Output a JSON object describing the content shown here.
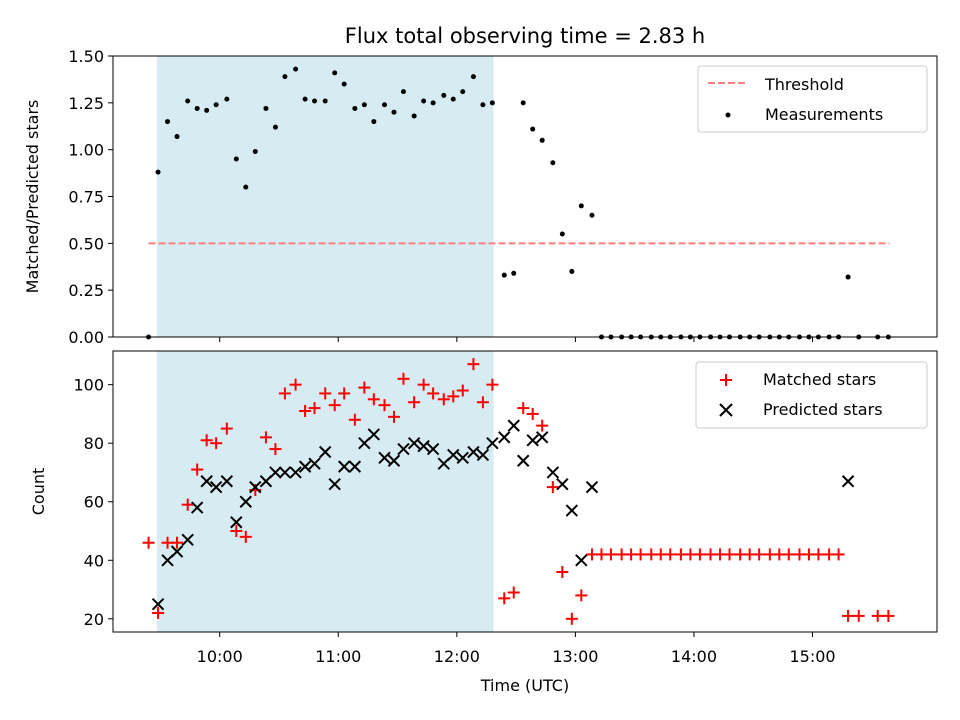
{
  "chart_data": [
    {
      "type": "scatter",
      "title": "Flux total observing time = 2.83 h",
      "xlabel": "",
      "ylabel": "Matched/Predicted stars",
      "xlim": [
        9.1,
        16.05
      ],
      "ylim": [
        0.0,
        1.5
      ],
      "yticks": [
        0.0,
        0.25,
        0.5,
        0.75,
        1.0,
        1.25,
        1.5
      ],
      "ytick_labels": [
        "0.00",
        "0.25",
        "0.50",
        "0.75",
        "1.00",
        "1.25",
        "1.50"
      ],
      "shaded_span": [
        9.47,
        12.31
      ],
      "threshold": {
        "name": "Threshold",
        "value": 0.5,
        "x_range": [
          9.4,
          15.65
        ],
        "color": "#ff7f7f"
      },
      "series": [
        {
          "name": "Measurements",
          "color": "#000000",
          "x": [
            9.4,
            9.48,
            9.56,
            9.64,
            9.73,
            9.81,
            9.89,
            9.97,
            10.06,
            10.14,
            10.22,
            10.3,
            10.39,
            10.47,
            10.55,
            10.64,
            10.72,
            10.8,
            10.89,
            10.97,
            11.05,
            11.14,
            11.22,
            11.3,
            11.39,
            11.47,
            11.55,
            11.64,
            11.72,
            11.8,
            11.89,
            11.97,
            12.05,
            12.14,
            12.22,
            12.3,
            12.4,
            12.48,
            12.56,
            12.64,
            12.72,
            12.81,
            12.89,
            12.97,
            13.05,
            13.14,
            13.22,
            13.3,
            13.39,
            13.47,
            13.55,
            13.64,
            13.72,
            13.8,
            13.89,
            13.97,
            14.05,
            14.14,
            14.22,
            14.3,
            14.39,
            14.47,
            14.55,
            14.64,
            14.72,
            14.8,
            14.89,
            14.97,
            15.05,
            15.14,
            15.22,
            15.3,
            15.39,
            15.55,
            15.64
          ],
          "values": [
            0.0,
            0.88,
            1.15,
            1.07,
            1.26,
            1.22,
            1.21,
            1.24,
            1.27,
            0.95,
            0.8,
            0.99,
            1.22,
            1.12,
            1.39,
            1.43,
            1.27,
            1.26,
            1.26,
            1.41,
            1.35,
            1.22,
            1.24,
            1.15,
            1.24,
            1.2,
            1.31,
            1.18,
            1.26,
            1.25,
            1.29,
            1.27,
            1.31,
            1.39,
            1.24,
            1.25,
            0.33,
            0.34,
            1.25,
            1.11,
            1.05,
            0.93,
            0.55,
            0.35,
            0.7,
            0.65,
            0.0,
            0.0,
            0.0,
            0.0,
            0.0,
            0.0,
            0.0,
            0.0,
            0.0,
            0.0,
            0.0,
            0.0,
            0.0,
            0.0,
            0.0,
            0.0,
            0.0,
            0.0,
            0.0,
            0.0,
            0.0,
            0.0,
            0.0,
            0.0,
            0.0,
            0.32,
            0.0,
            0.0,
            0.0
          ]
        }
      ],
      "legend": {
        "placement": "top-right",
        "entries": [
          "Threshold",
          "Measurements"
        ]
      }
    },
    {
      "type": "scatter",
      "title": "",
      "xlabel": "Time (UTC)",
      "ylabel": "Count",
      "xlim": [
        9.1,
        16.05
      ],
      "ylim": [
        15.5,
        111.5
      ],
      "xticks": [
        10,
        11,
        12,
        13,
        14,
        15
      ],
      "xtick_labels": [
        "10:00",
        "11:00",
        "12:00",
        "13:00",
        "14:00",
        "15:00"
      ],
      "yticks": [
        20,
        40,
        60,
        80,
        100
      ],
      "ytick_labels": [
        "20",
        "40",
        "60",
        "80",
        "100"
      ],
      "shaded_span": [
        9.47,
        12.31
      ],
      "series": [
        {
          "name": "Matched stars",
          "marker": "plus",
          "color": "#ff0000",
          "x": [
            9.4,
            9.48,
            9.56,
            9.64,
            9.73,
            9.81,
            9.89,
            9.97,
            10.06,
            10.14,
            10.22,
            10.3,
            10.39,
            10.47,
            10.55,
            10.64,
            10.72,
            10.8,
            10.89,
            10.97,
            11.05,
            11.14,
            11.22,
            11.3,
            11.39,
            11.47,
            11.55,
            11.64,
            11.72,
            11.8,
            11.89,
            11.97,
            12.05,
            12.14,
            12.22,
            12.3,
            12.4,
            12.48,
            12.56,
            12.64,
            12.72,
            12.81,
            12.89,
            12.97,
            13.05,
            13.14,
            13.22,
            13.3,
            13.39,
            13.47,
            13.55,
            13.64,
            13.72,
            13.8,
            13.89,
            13.97,
            14.05,
            14.14,
            14.22,
            14.3,
            14.39,
            14.47,
            14.55,
            14.64,
            14.72,
            14.8,
            14.89,
            14.97,
            15.05,
            15.14,
            15.22,
            15.3,
            15.39,
            15.55,
            15.64
          ],
          "values": [
            46,
            22,
            46,
            46,
            59,
            71,
            81,
            80,
            85,
            50,
            48,
            64,
            82,
            78,
            97,
            100,
            91,
            92,
            97,
            93,
            97,
            88,
            99,
            95,
            93,
            89,
            102,
            94,
            100,
            97,
            95,
            96,
            98,
            107,
            94,
            100,
            27,
            29,
            92,
            90,
            86,
            65,
            36,
            20,
            28,
            42,
            42,
            42,
            42,
            42,
            42,
            42,
            42,
            42,
            42,
            42,
            42,
            42,
            42,
            42,
            42,
            42,
            42,
            42,
            42,
            42,
            42,
            42,
            42,
            42,
            42,
            21,
            21,
            21,
            21
          ]
        },
        {
          "name": "Predicted stars",
          "marker": "x",
          "color": "#000000",
          "x": [
            9.48,
            9.56,
            9.64,
            9.73,
            9.81,
            9.89,
            9.97,
            10.06,
            10.14,
            10.22,
            10.3,
            10.39,
            10.47,
            10.55,
            10.64,
            10.72,
            10.8,
            10.89,
            10.97,
            11.05,
            11.14,
            11.22,
            11.3,
            11.39,
            11.47,
            11.55,
            11.64,
            11.72,
            11.8,
            11.89,
            11.97,
            12.05,
            12.14,
            12.22,
            12.3,
            12.4,
            12.48,
            12.56,
            12.64,
            12.72,
            12.81,
            12.89,
            12.97,
            13.05,
            13.14,
            15.3
          ],
          "values": [
            25,
            40,
            43,
            47,
            58,
            67,
            65,
            67,
            53,
            60,
            65,
            67,
            70,
            70,
            70,
            72,
            73,
            77,
            66,
            72,
            72,
            80,
            83,
            75,
            74,
            78,
            80,
            79,
            78,
            73,
            76,
            75,
            77,
            76,
            80,
            82,
            86,
            74,
            81,
            82,
            70,
            66,
            57,
            40,
            65,
            67
          ]
        }
      ],
      "legend": {
        "placement": "top-right",
        "entries": [
          "Matched stars",
          "Predicted stars"
        ]
      }
    }
  ]
}
